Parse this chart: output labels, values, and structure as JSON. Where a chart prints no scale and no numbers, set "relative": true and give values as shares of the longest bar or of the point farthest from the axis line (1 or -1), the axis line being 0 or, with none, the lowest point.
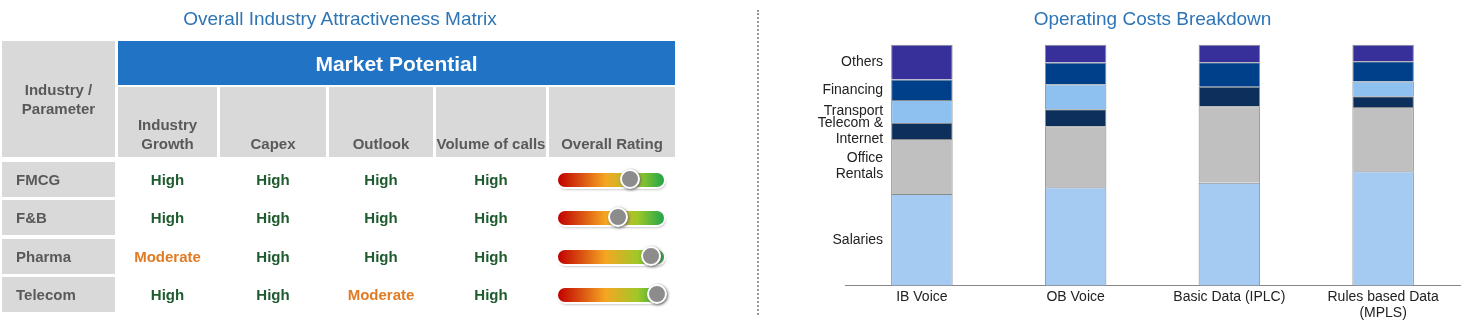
{
  "chart_data": [
    {
      "type": "other",
      "title": "Overall Industry Attractiveness Matrix",
      "annotations": [
        "Industry / Parameter",
        "Market Potential",
        "Industry Growth",
        "Capex",
        "Outlook",
        "Volume of calls",
        "Overall Rating",
        "FMCG",
        "High",
        "High",
        "High",
        "High",
        "F&B",
        "High",
        "High",
        "High",
        "High",
        "Pharma",
        "Moderate",
        "High",
        "High",
        "High",
        "Telecom",
        "High",
        "High",
        "Moderate",
        "High"
      ],
      "colors": [
        "#595959",
        "#ffffff",
        "#595959",
        "#595959",
        "#595959",
        "#595959",
        "#595959",
        "#595959",
        "#1e5b2e",
        "#1e5b2e",
        "#1e5b2e",
        "#1e5b2e",
        "#595959",
        "#1e5b2e",
        "#1e5b2e",
        "#1e5b2e",
        "#1e5b2e",
        "#595959",
        "#e07b24",
        "#1e5b2e",
        "#1e5b2e",
        "#1e5b2e",
        "#595959",
        "#1e5b2e",
        "#1e5b2e",
        "#e07b24",
        "#1e5b2e"
      ]
    },
    {
      "type": "bar",
      "title": "Operating Costs Breakdown",
      "stacked": true,
      "relative": true,
      "legend": false,
      "categories": [
        "IB Voice",
        "OB Voice",
        "Basic Data (IPLC)",
        "Rules based Data (MPLS)"
      ],
      "series": [
        {
          "name": "Salaries",
          "color": "#a6cbf3",
          "values": [
            0.38,
            0.408,
            0.427,
            0.474
          ]
        },
        {
          "name": "Office Rentals",
          "color": "#c0c0c0",
          "values": [
            0.228,
            0.253,
            0.318,
            0.267
          ]
        },
        {
          "name": "Telecom & Internet",
          "color": "#0c2f5c",
          "values": [
            0.067,
            0.071,
            0.081,
            0.045
          ]
        },
        {
          "name": "Transport",
          "color": "#8fc1f0",
          "values": [
            0.096,
            0.104,
            0,
            0.061
          ]
        },
        {
          "name": "Financing",
          "color": "#003f8a",
          "values": [
            0.085,
            0.09,
            0.101,
            0.085
          ]
        },
        {
          "name": "Others",
          "color": "#38309a",
          "values": [
            0.144,
            0.074,
            0.073,
            0.068
          ]
        }
      ]
    }
  ]
}
